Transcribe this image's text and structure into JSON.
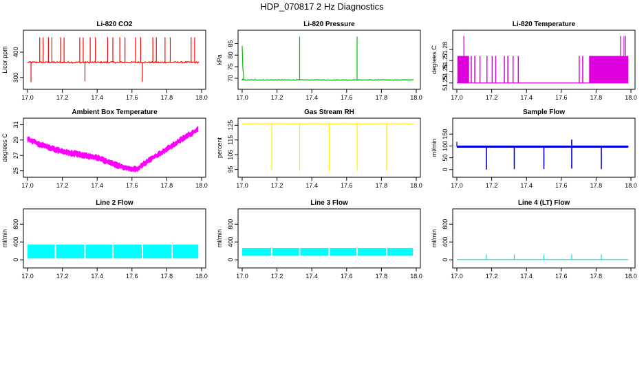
{
  "title": "HDP_070817  2 Hz Diagnostics",
  "chart_data": [
    {
      "type": "line",
      "title": "Li-820 CO2",
      "ylabel": "Licor ppm",
      "color": "#ff0000",
      "xlim": [
        17.0,
        18.0
      ],
      "ylim": [
        270,
        470
      ],
      "xticks": [
        "17.0",
        "17.2",
        "17.4",
        "17.6",
        "17.8",
        "18.0"
      ],
      "yticks": [
        {
          "v": 300,
          "label": "300"
        },
        {
          "v": 400,
          "label": "400"
        }
      ],
      "pattern": "baseline-spikes",
      "baseline": 360,
      "noise": 3,
      "spikes_up": [
        17.07,
        17.09,
        17.12,
        17.14,
        17.19,
        17.21,
        17.3,
        17.32,
        17.36,
        17.39,
        17.46,
        17.49,
        17.53,
        17.56,
        17.62,
        17.65,
        17.72,
        17.74,
        17.79,
        17.82,
        17.94,
        17.96
      ],
      "spike_top": 458,
      "spikes_down": [
        {
          "x": 17.02,
          "y": 282
        },
        {
          "x": 17.33,
          "y": 285
        },
        {
          "x": 17.66,
          "y": 283
        }
      ]
    },
    {
      "type": "line",
      "title": "Li-820 Pressure",
      "ylabel": "kPa",
      "color": "#00bb00",
      "xlim": [
        17.0,
        18.0
      ],
      "ylim": [
        67,
        89
      ],
      "xticks": [
        "17.0",
        "17.2",
        "17.4",
        "17.6",
        "17.8",
        "18.0"
      ],
      "yticks": [
        {
          "v": 70,
          "label": "70"
        },
        {
          "v": 75,
          "label": "75"
        },
        {
          "v": 80,
          "label": "80"
        },
        {
          "v": 85,
          "label": "85"
        }
      ],
      "pattern": "pressure",
      "baseline": 69.3,
      "noise": 0.15,
      "spikes_up": [
        17.33,
        17.66
      ],
      "spike_top": 88
    },
    {
      "type": "line",
      "title": "Li-820 Temperature",
      "ylabel": "degrees C",
      "color": "#dd00dd",
      "xlim": [
        17.0,
        18.0
      ],
      "ylim": [
        51.248,
        51.2935
      ],
      "xticks": [
        "17.0",
        "17.2",
        "17.4",
        "17.6",
        "17.8",
        "18.0"
      ],
      "yticks": [
        {
          "v": 51.25,
          "label": "51.25"
        },
        {
          "v": 51.26,
          "label": "51.26"
        },
        {
          "v": 51.27,
          "label": "51.27"
        },
        {
          "v": 51.28,
          "label": "51.28"
        }
      ],
      "pattern": "temperature",
      "low": 51.25,
      "high": 51.2742,
      "top": 51.292
    },
    {
      "type": "area",
      "title": "Ambient Box Temperature",
      "ylabel": "degrees C",
      "color": "#ff00ff",
      "xlim": [
        17.0,
        18.0
      ],
      "ylim": [
        24.7,
        31.3
      ],
      "xticks": [
        "17.0",
        "17.2",
        "17.4",
        "17.6",
        "17.8",
        "18.0"
      ],
      "yticks": [
        {
          "v": 25,
          "label": "25"
        },
        {
          "v": 27,
          "label": "27"
        },
        {
          "v": 29,
          "label": "29"
        },
        {
          "v": 31,
          "label": "31"
        }
      ],
      "pattern": "band",
      "band_width": 0.6,
      "x": [
        17.0,
        17.1,
        17.2,
        17.3,
        17.4,
        17.5,
        17.6,
        17.63,
        17.7,
        17.8,
        17.9,
        17.98
      ],
      "y": [
        29.1,
        28.2,
        27.5,
        27.1,
        26.7,
        25.8,
        25.2,
        25.3,
        26.4,
        27.8,
        29.3,
        30.4
      ]
    },
    {
      "type": "line",
      "title": "Gas Stream RH",
      "ylabel": "percent",
      "color": "#ffee00",
      "xlim": [
        17.0,
        18.0
      ],
      "ylim": [
        92.5,
        127
      ],
      "xticks": [
        "17.0",
        "17.2",
        "17.4",
        "17.6",
        "17.8",
        "18.0"
      ],
      "yticks": [
        {
          "v": 95,
          "label": "95"
        },
        {
          "v": 105,
          "label": "105"
        },
        {
          "v": 115,
          "label": "115"
        },
        {
          "v": 125,
          "label": "125"
        }
      ],
      "pattern": "baseline-dips",
      "baseline": 126,
      "noise": 0.1,
      "spikes_down": [
        {
          "x": 17.17,
          "y": 94
        },
        {
          "x": 17.33,
          "y": 94
        },
        {
          "x": 17.5,
          "y": 94
        },
        {
          "x": 17.66,
          "y": 94
        },
        {
          "x": 17.83,
          "y": 94
        }
      ]
    },
    {
      "type": "line",
      "title": "Sample Flow",
      "ylabel": "ml/min",
      "color": "#0000dd",
      "xlim": [
        17.0,
        18.0
      ],
      "ylim": [
        -15,
        200
      ],
      "xticks": [
        "17.0",
        "17.2",
        "17.4",
        "17.6",
        "17.8",
        "18.0"
      ],
      "yticks": [
        {
          "v": 0,
          "label": "0"
        },
        {
          "v": 50,
          "label": "50"
        },
        {
          "v": 100,
          "label": "100"
        },
        {
          "v": 150,
          "label": "150"
        }
      ],
      "pattern": "thick-dips",
      "baseline": 97,
      "band_width": 9,
      "spikes_down": [
        {
          "x": 17.17,
          "y": 0
        },
        {
          "x": 17.33,
          "y": 2
        },
        {
          "x": 17.5,
          "y": 2
        },
        {
          "x": 17.66,
          "y": 4
        },
        {
          "x": 17.83,
          "y": 2
        }
      ],
      "spike_up": {
        "x": 17.66,
        "y": 127
      }
    },
    {
      "type": "area",
      "title": "Line 2 Flow",
      "ylabel": "ml/min",
      "color": "#00ffff",
      "xlim": [
        17.0,
        18.0
      ],
      "ylim": [
        -90,
        1050
      ],
      "xticks": [
        "17.0",
        "17.2",
        "17.4",
        "17.6",
        "17.8",
        "18.0"
      ],
      "yticks": [
        {
          "v": 0,
          "label": "0"
        },
        {
          "v": 400,
          "label": "400"
        },
        {
          "v": 800,
          "label": "800"
        }
      ],
      "pattern": "blocks",
      "low": 30,
      "high": 340,
      "breaks": [
        17.16,
        17.33,
        17.49,
        17.66,
        17.83
      ]
    },
    {
      "type": "area",
      "title": "Line 3 Flow",
      "ylabel": "ml/min",
      "color": "#00ffff",
      "xlim": [
        17.0,
        18.0
      ],
      "ylim": [
        -90,
        1050
      ],
      "xticks": [
        "17.0",
        "17.2",
        "17.4",
        "17.6",
        "17.8",
        "18.0"
      ],
      "yticks": [
        {
          "v": 0,
          "label": "0"
        },
        {
          "v": 400,
          "label": "400"
        },
        {
          "v": 800,
          "label": "800"
        }
      ],
      "pattern": "blocks",
      "low": 90,
      "high": 265,
      "breaks": [
        17.17,
        17.33,
        17.5,
        17.66,
        17.83
      ]
    },
    {
      "type": "line",
      "title": "Line 4 (LT) Flow",
      "ylabel": "ml/min",
      "color": "#00dddd",
      "xlim": [
        17.0,
        18.0
      ],
      "ylim": [
        -90,
        1050
      ],
      "xticks": [
        "17.0",
        "17.2",
        "17.4",
        "17.6",
        "17.8",
        "18.0"
      ],
      "yticks": [
        {
          "v": 0,
          "label": "0"
        },
        {
          "v": 400,
          "label": "400"
        },
        {
          "v": 800,
          "label": "800"
        }
      ],
      "pattern": "baseline-spikes",
      "baseline": 5,
      "noise": 0,
      "spikes_up": [
        17.17,
        17.33,
        17.5,
        17.66,
        17.83
      ],
      "spike_top": 120
    }
  ]
}
